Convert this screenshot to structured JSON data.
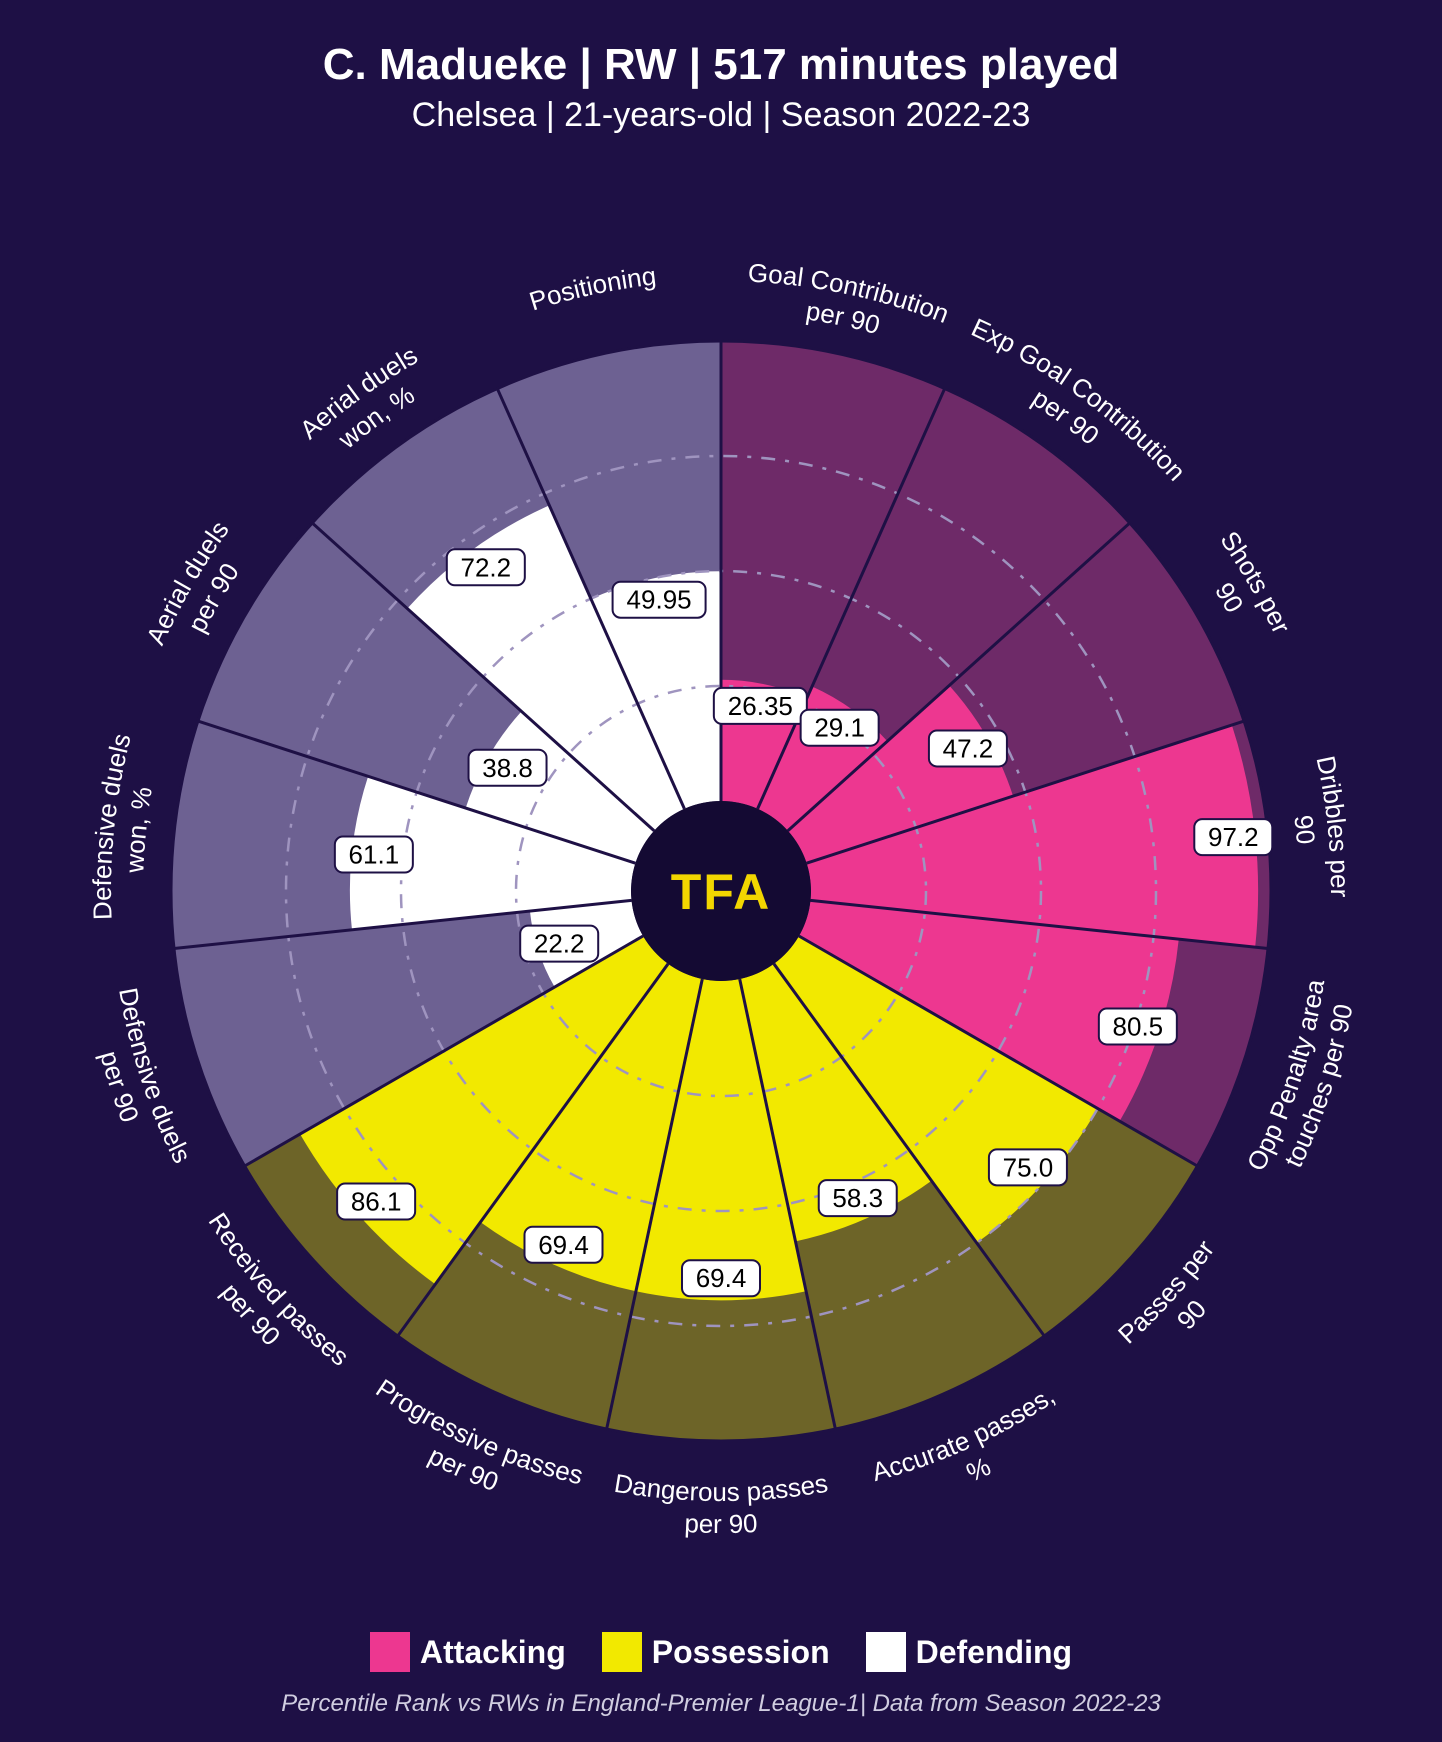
{
  "title": "C. Madueke | RW | 517 minutes played",
  "subtitle": "Chelsea | 21-years-old | Season 2022-23",
  "footnote": "Percentile Rank vs RWs in England-Premier League-1| Data from Season 2022-23",
  "center_logo": "TFA",
  "background_color": "#1e1045",
  "chart": {
    "type": "polar-bar",
    "inner_radius": 90,
    "outer_radius": 550,
    "label_radius": 610,
    "grid_rings": [
      25,
      50,
      75
    ],
    "grid_color": "#9f94bf",
    "slices": [
      {
        "label": "Goal Contribution per 90",
        "value": 26.35,
        "group": "attacking"
      },
      {
        "label": "Exp Goal Contribution per 90",
        "value": 29.1,
        "group": "attacking"
      },
      {
        "label": "Shots per 90",
        "value": 47.2,
        "group": "attacking"
      },
      {
        "label": "Dribbles per 90",
        "value": 97.2,
        "group": "attacking"
      },
      {
        "label": "Opp Penalty area touches per 90",
        "value": 80.5,
        "group": "attacking"
      },
      {
        "label": "Passes per 90",
        "value": 75.0,
        "group": "possession"
      },
      {
        "label": "Accurate passes, %",
        "value": 58.3,
        "group": "possession"
      },
      {
        "label": "Dangerous passes per 90",
        "value": 69.4,
        "group": "possession"
      },
      {
        "label": "Progressive passes per 90",
        "value": 69.4,
        "group": "possession"
      },
      {
        "label": "Received passes per 90",
        "value": 86.1,
        "group": "possession"
      },
      {
        "label": "Defensive duels per 90",
        "value": 22.2,
        "group": "defending"
      },
      {
        "label": "Defensive duels won, %",
        "value": 61.1,
        "group": "defending"
      },
      {
        "label": "Aerial duels per 90",
        "value": 38.8,
        "group": "defending"
      },
      {
        "label": "Aerial duels won, %",
        "value": 72.2,
        "group": "defending"
      },
      {
        "label": "Positioning",
        "value": 49.95,
        "group": "defending"
      }
    ],
    "groups": {
      "attacking": {
        "label": "Attacking",
        "bar_color": "#ed3790",
        "bg_color": "#6e2a68"
      },
      "possession": {
        "label": "Possession",
        "bar_color": "#f2e900",
        "bg_color": "#6d6428"
      },
      "defending": {
        "label": "Defending",
        "bar_color": "#ffffff",
        "bg_color": "#6d6192"
      }
    },
    "spoke_color": "#1e1045",
    "label_fontsize": 26,
    "value_label_fontsize": 26,
    "title_fontsize": 44,
    "subtitle_fontsize": 34
  },
  "legend": [
    {
      "label": "Attacking",
      "color": "#ed3790"
    },
    {
      "label": "Possession",
      "color": "#f2e900"
    },
    {
      "label": "Defending",
      "color": "#ffffff"
    }
  ]
}
